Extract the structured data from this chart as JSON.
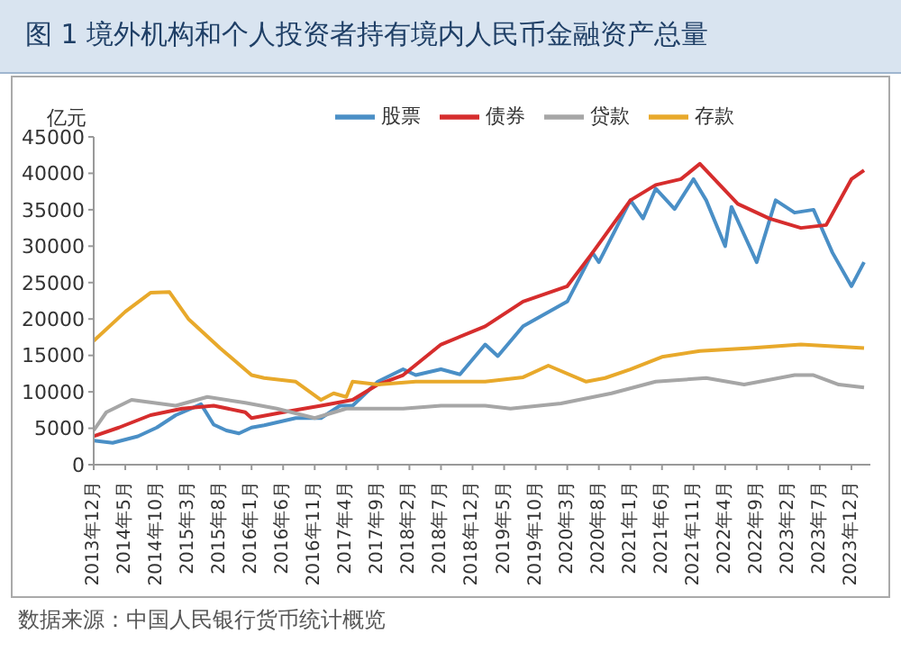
{
  "chart_data": {
    "type": "line",
    "title": "图 1 境外机构和个人投资者持有境内人民币金融资产总量",
    "ylabel": "亿元",
    "annotations": [
      "数据来源：中国人民银行货币统计概览"
    ],
    "xlim": [
      "2013-12",
      "2024-03"
    ],
    "xticks": [
      {
        "value": "2013-12",
        "label": "2013年12月"
      },
      {
        "value": "2014-05",
        "label": "2014年5月"
      },
      {
        "value": "2014-10",
        "label": "2014年10月"
      },
      {
        "value": "2015-03",
        "label": "2015年3月"
      },
      {
        "value": "2015-08",
        "label": "2015年8月"
      },
      {
        "value": "2016-01",
        "label": "2016年1月"
      },
      {
        "value": "2016-06",
        "label": "2016年6月"
      },
      {
        "value": "2016-11",
        "label": "2016年11月"
      },
      {
        "value": "2017-04",
        "label": "2017年4月"
      },
      {
        "value": "2017-09",
        "label": "2017年9月"
      },
      {
        "value": "2018-02",
        "label": "2018年2月"
      },
      {
        "value": "2018-07",
        "label": "2018年7月"
      },
      {
        "value": "2018-12",
        "label": "2018年12月"
      },
      {
        "value": "2019-05",
        "label": "2019年5月"
      },
      {
        "value": "2019-10",
        "label": "2019年10月"
      },
      {
        "value": "2020-03",
        "label": "2020年3月"
      },
      {
        "value": "2020-08",
        "label": "2020年8月"
      },
      {
        "value": "2021-01",
        "label": "2021年1月"
      },
      {
        "value": "2021-06",
        "label": "2021年6月"
      },
      {
        "value": "2021-11",
        "label": "2021年11月"
      },
      {
        "value": "2022-04",
        "label": "2022年4月"
      },
      {
        "value": "2022-09",
        "label": "2022年9月"
      },
      {
        "value": "2023-02",
        "label": "2023年2月"
      },
      {
        "value": "2023-07",
        "label": "2023年7月"
      },
      {
        "value": "2023-12",
        "label": "2023年12月"
      }
    ],
    "ylim": [
      0,
      45000
    ],
    "yticks": [
      0,
      5000,
      10000,
      15000,
      20000,
      25000,
      30000,
      35000,
      40000,
      45000
    ],
    "legend": "top",
    "marker": "none",
    "line_style": "solid",
    "series": [
      {
        "name": "股票",
        "color": "#4a8fc6",
        "x": [
          "2013-12",
          "2014-03",
          "2014-07",
          "2014-10",
          "2015-01",
          "2015-05",
          "2015-07",
          "2015-09",
          "2015-11",
          "2016-01",
          "2016-03",
          "2016-08",
          "2016-12",
          "2017-03",
          "2017-05",
          "2017-09",
          "2018-01",
          "2018-03",
          "2018-07",
          "2018-10",
          "2019-02",
          "2019-04",
          "2019-08",
          "2020-03",
          "2020-07",
          "2020-08",
          "2021-01",
          "2021-03",
          "2021-05",
          "2021-08",
          "2021-11",
          "2022-01",
          "2022-04",
          "2022-05",
          "2022-09",
          "2022-12",
          "2023-03",
          "2023-06",
          "2023-09",
          "2023-12",
          "2024-02"
        ],
        "values": [
          3300,
          3000,
          3900,
          5100,
          6800,
          8300,
          5500,
          4700,
          4300,
          5100,
          5400,
          6400,
          6400,
          8100,
          8100,
          11400,
          13100,
          12300,
          13100,
          12400,
          16500,
          14900,
          19000,
          22400,
          29100,
          27800,
          36300,
          33800,
          37900,
          35100,
          39200,
          36300,
          30000,
          35400,
          27800,
          36300,
          34600,
          35000,
          29100,
          24500,
          27800
        ]
      },
      {
        "name": "债券",
        "color": "#d62d2d",
        "x": [
          "2013-12",
          "2014-04",
          "2014-09",
          "2015-02",
          "2015-07",
          "2015-12",
          "2016-01",
          "2016-06",
          "2016-12",
          "2017-05",
          "2017-09",
          "2018-01",
          "2018-07",
          "2019-02",
          "2019-08",
          "2020-03",
          "2020-07",
          "2021-01",
          "2021-05",
          "2021-09",
          "2021-12",
          "2022-06",
          "2022-11",
          "2023-04",
          "2023-08",
          "2023-12",
          "2024-02"
        ],
        "values": [
          3900,
          5100,
          6800,
          7700,
          8100,
          7200,
          6400,
          7200,
          8100,
          8900,
          11000,
          12300,
          16500,
          19000,
          22400,
          24500,
          29100,
          36300,
          38400,
          39200,
          41300,
          35800,
          33800,
          32500,
          32900,
          39200,
          40400
        ]
      },
      {
        "name": "贷款",
        "color": "#a6a6a6",
        "x": [
          "2013-12",
          "2014-02",
          "2014-06",
          "2015-01",
          "2015-06",
          "2015-12",
          "2016-05",
          "2016-11",
          "2017-04",
          "2017-09",
          "2018-01",
          "2018-07",
          "2019-02",
          "2019-06",
          "2020-02",
          "2020-10",
          "2021-05",
          "2022-01",
          "2022-07",
          "2023-03",
          "2023-06",
          "2023-10",
          "2024-02"
        ],
        "values": [
          4700,
          7200,
          8900,
          8100,
          9300,
          8500,
          7700,
          6400,
          7700,
          7700,
          7700,
          8100,
          8100,
          7700,
          8400,
          9800,
          11400,
          11900,
          11000,
          12300,
          12300,
          11000,
          10600
        ]
      },
      {
        "name": "存款",
        "color": "#e8a92b",
        "x": [
          "2013-12",
          "2014-05",
          "2014-09",
          "2014-12",
          "2015-03",
          "2015-08",
          "2016-01",
          "2016-03",
          "2016-08",
          "2016-12",
          "2017-02",
          "2017-04",
          "2017-05",
          "2017-09",
          "2018-03",
          "2018-07",
          "2019-02",
          "2019-08",
          "2019-12",
          "2020-06",
          "2020-09",
          "2021-01",
          "2021-06",
          "2021-12",
          "2022-08",
          "2023-04",
          "2024-02"
        ],
        "values": [
          17000,
          21000,
          23600,
          23700,
          20000,
          16000,
          12300,
          11900,
          11400,
          8900,
          9800,
          9300,
          11400,
          11000,
          11400,
          11400,
          11400,
          12000,
          13600,
          11400,
          11900,
          13100,
          14800,
          15600,
          16000,
          16500,
          16000
        ]
      }
    ]
  }
}
